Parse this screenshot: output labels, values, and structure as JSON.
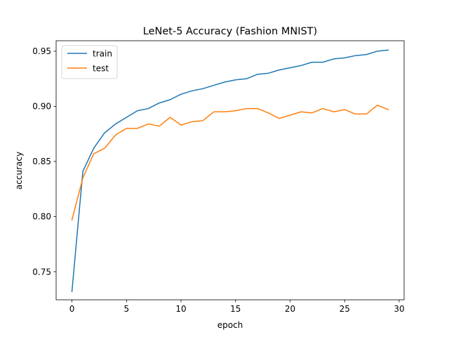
{
  "chart_data": {
    "type": "line",
    "title": "LeNet-5 Accuracy (Fashion MNIST)",
    "xlabel": "epoch",
    "ylabel": "accuracy",
    "xlim": [
      -1.45,
      30.45
    ],
    "ylim": [
      0.7245,
      0.9595
    ],
    "xticks": [
      0,
      5,
      10,
      15,
      20,
      25,
      30
    ],
    "xtick_labels": [
      "0",
      "5",
      "10",
      "15",
      "20",
      "25",
      "30"
    ],
    "yticks": [
      0.75,
      0.8,
      0.85,
      0.9,
      0.95
    ],
    "ytick_labels": [
      "0.75",
      "0.80",
      "0.85",
      "0.90",
      "0.95"
    ],
    "grid": false,
    "legend_position": "top-left",
    "x": [
      0,
      1,
      2,
      3,
      4,
      5,
      6,
      7,
      8,
      9,
      10,
      11,
      12,
      13,
      14,
      15,
      16,
      17,
      18,
      19,
      20,
      21,
      22,
      23,
      24,
      25,
      26,
      27,
      28,
      29
    ],
    "series": [
      {
        "name": "train",
        "color": "#1f77b4",
        "values": [
          0.732,
          0.841,
          0.862,
          0.876,
          0.884,
          0.89,
          0.896,
          0.898,
          0.903,
          0.906,
          0.911,
          0.914,
          0.916,
          0.919,
          0.922,
          0.924,
          0.925,
          0.929,
          0.93,
          0.933,
          0.935,
          0.937,
          0.94,
          0.94,
          0.943,
          0.944,
          0.946,
          0.947,
          0.95,
          0.951
        ]
      },
      {
        "name": "test",
        "color": "#ff7f0e",
        "values": [
          0.797,
          0.835,
          0.857,
          0.862,
          0.874,
          0.88,
          0.88,
          0.884,
          0.882,
          0.89,
          0.883,
          0.886,
          0.887,
          0.895,
          0.895,
          0.896,
          0.898,
          0.898,
          0.894,
          0.889,
          0.892,
          0.895,
          0.894,
          0.898,
          0.895,
          0.897,
          0.893,
          0.893,
          0.901,
          0.897
        ]
      }
    ]
  }
}
